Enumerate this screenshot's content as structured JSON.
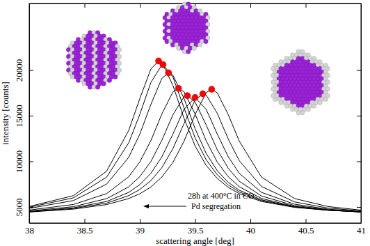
{
  "chart_data": {
    "type": "line",
    "x_label": "scattering angle  [deg]",
    "y_label": "intensity  [counts]",
    "xlim": [
      38,
      41
    ],
    "xticks": [
      38,
      38.5,
      39,
      39.5,
      40,
      40.5,
      41
    ],
    "ylim": [
      3240,
      27300
    ],
    "yticks": [
      5000,
      10000,
      15000,
      20000
    ],
    "grid": false,
    "annotations": [
      {
        "text": "28h at 400°C in CO"
      },
      {
        "text": "Pd segregation"
      }
    ],
    "series": [
      {
        "type": "line",
        "color": "#000000",
        "line_style": "solid",
        "x": [
          38,
          38.4,
          38.7,
          38.9,
          39.0,
          39.1,
          39.17,
          39.2,
          39.3,
          39.4,
          39.5,
          39.6,
          39.7,
          39.8,
          39.9,
          40.1,
          40.4,
          40.7,
          41
        ],
        "values": [
          5050,
          6240,
          8920,
          13390,
          16870,
          20120,
          21000,
          20830,
          18310,
          14710,
          11690,
          9560,
          8130,
          7140,
          6460,
          5600,
          4950,
          4630,
          4450
        ]
      },
      {
        "type": "line",
        "color": "#000000",
        "line_style": "solid",
        "x": [
          38,
          38.4,
          38.7,
          38.9,
          39.0,
          39.1,
          39.2,
          39.21,
          39.3,
          39.4,
          39.5,
          39.6,
          39.7,
          39.8,
          39.9,
          40.1,
          40.4,
          40.7,
          41
        ],
        "values": [
          4960,
          6000,
          8270,
          12030,
          15140,
          18630,
          20580,
          20600,
          19230,
          15850,
          12580,
          10170,
          8530,
          7410,
          6640,
          5690,
          4990,
          4650,
          4450
        ]
      },
      {
        "type": "line",
        "color": "#000000",
        "line_style": "solid",
        "x": [
          38,
          38.4,
          38.7,
          38.9,
          39.0,
          39.1,
          39.2,
          39.26,
          39.3,
          39.4,
          39.5,
          39.6,
          39.7,
          39.8,
          39.9,
          40.1,
          40.4,
          40.7,
          41
        ],
        "values": [
          4840,
          5700,
          7500,
          10440,
          12970,
          16230,
          19100,
          19700,
          19430,
          16890,
          13580,
          10870,
          8980,
          7700,
          6830,
          5780,
          5020,
          4650,
          4450
        ]
      },
      {
        "type": "line",
        "color": "#000000",
        "line_style": "solid",
        "x": [
          38,
          38.4,
          38.7,
          38.9,
          39.0,
          39.1,
          39.2,
          39.3,
          39.35,
          39.4,
          39.5,
          39.6,
          39.7,
          39.8,
          39.9,
          40.1,
          40.4,
          40.7,
          41
        ],
        "values": [
          4660,
          5270,
          6460,
          8310,
          9930,
          12260,
          15200,
          17620,
          18000,
          17620,
          15200,
          12260,
          9930,
          8310,
          7210,
          5930,
          5060,
          4660,
          4450
        ]
      },
      {
        "type": "line",
        "color": "#000000",
        "line_style": "solid",
        "x": [
          38,
          38.4,
          38.7,
          38.9,
          39.0,
          39.1,
          39.2,
          39.3,
          39.4,
          39.43,
          39.5,
          39.6,
          39.7,
          39.8,
          39.9,
          40.1,
          40.4,
          40.7,
          41
        ],
        "values": [
          4560,
          5030,
          5910,
          7200,
          8320,
          9970,
          12320,
          15110,
          17070,
          17200,
          16510,
          13990,
          11290,
          9240,
          7820,
          6200,
          5150,
          4700,
          4450
        ]
      },
      {
        "type": "line",
        "color": "#000000",
        "line_style": "solid",
        "x": [
          38,
          38.4,
          38.7,
          38.9,
          39.0,
          39.1,
          39.2,
          39.3,
          39.4,
          39.5,
          39.6,
          39.7,
          39.8,
          39.9,
          40.1,
          40.4,
          40.7,
          41
        ],
        "values": [
          4500,
          4900,
          5600,
          6600,
          7450,
          8680,
          10500,
          13000,
          15700,
          17000,
          15700,
          13000,
          10500,
          8680,
          6600,
          5300,
          4760,
          4500
        ]
      },
      {
        "type": "line",
        "color": "#000000",
        "line_style": "solid",
        "x": [
          38,
          38.4,
          38.7,
          38.9,
          39.0,
          39.1,
          39.2,
          39.3,
          39.4,
          39.5,
          39.57,
          39.6,
          39.7,
          39.8,
          39.9,
          40.1,
          40.4,
          40.7,
          41
        ],
        "values": [
          4460,
          4830,
          5420,
          6240,
          6910,
          7880,
          9320,
          11400,
          14140,
          16700,
          17400,
          17270,
          15280,
          12440,
          10060,
          7250,
          5550,
          4880,
          4570
        ]
      },
      {
        "type": "line",
        "color": "#000000",
        "line_style": "solid",
        "x": [
          38,
          38.4,
          38.7,
          38.9,
          39.0,
          39.1,
          39.2,
          39.3,
          39.4,
          39.5,
          39.6,
          39.65,
          39.7,
          39.8,
          39.9,
          40.1,
          40.4,
          40.7,
          41
        ],
        "values": [
          4440,
          4760,
          5260,
          5920,
          6440,
          7180,
          8280,
          9890,
          12200,
          15120,
          17520,
          17900,
          17520,
          15120,
          12200,
          8280,
          5920,
          5050,
          4650
        ]
      },
      {
        "type": "scatter",
        "color": "#ff0000",
        "marker": "circle",
        "x": [
          39.17,
          39.21,
          39.26,
          39.35,
          39.43,
          39.5,
          39.57,
          39.65
        ],
        "values": [
          21000,
          20600,
          19700,
          18000,
          17200,
          17000,
          17400,
          17900
        ]
      }
    ]
  }
}
